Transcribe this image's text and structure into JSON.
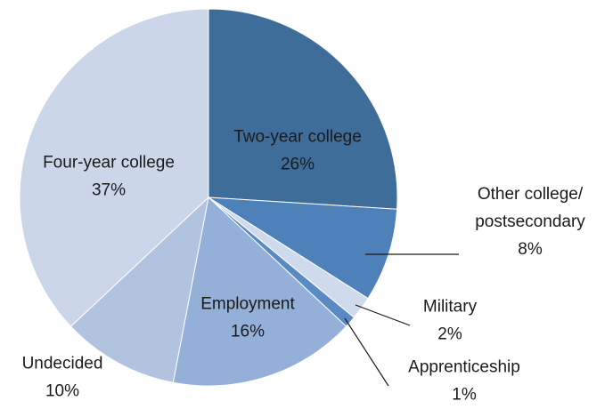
{
  "chart_data": {
    "type": "pie",
    "title": "",
    "slices": [
      {
        "label": "Two-year college",
        "value": 26,
        "display": "26%",
        "color": "#3f6d99"
      },
      {
        "label": "Other college/ postsecondary",
        "label_lines": [
          "Other college/",
          "postsecondary"
        ],
        "value": 8,
        "display": "8%",
        "color": "#4e80b9"
      },
      {
        "label": "Military",
        "value": 2,
        "display": "2%",
        "color": "#cfdbec"
      },
      {
        "label": "Apprenticeship",
        "value": 1,
        "display": "1%",
        "color": "#5a8ac4"
      },
      {
        "label": "Employment",
        "value": 16,
        "display": "16%",
        "color": "#94afd8"
      },
      {
        "label": "Undecided",
        "value": 10,
        "display": "10%",
        "color": "#b2c3df"
      },
      {
        "label": "Four-year college",
        "value": 37,
        "display": "37%",
        "color": "#cbd6e8"
      }
    ]
  }
}
